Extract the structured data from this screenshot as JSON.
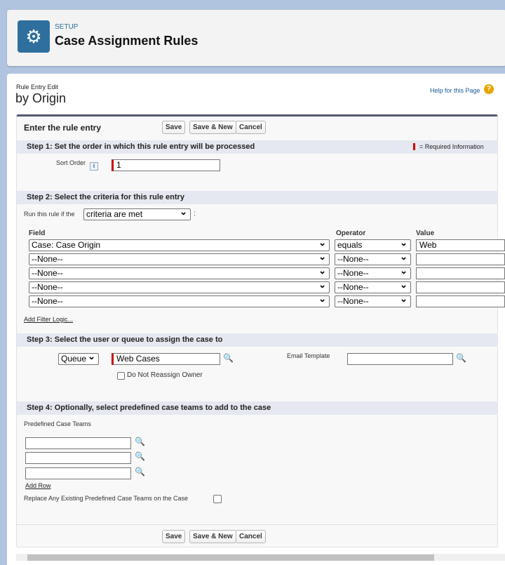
{
  "header": {
    "section": "SETUP",
    "title": "Case Assignment Rules"
  },
  "page": {
    "subtitle": "Rule Entry Edit",
    "title": "by Origin",
    "help": "Help for this Page"
  },
  "form": {
    "title": "Enter the rule entry",
    "save": "Save",
    "save_new": "Save & New",
    "cancel": "Cancel",
    "required_info": "= Required Information"
  },
  "step1": {
    "title": "Step 1: Set the order in which this rule entry will be processed",
    "sort_label": "Sort Order",
    "sort_value": "1"
  },
  "step2": {
    "title": "Step 2: Select the criteria for this rule entry",
    "run_label": "Run this rule if the",
    "run_value": "criteria are met",
    "colon": ":",
    "col_field": "Field",
    "col_operator": "Operator",
    "col_value": "Value",
    "rows": [
      {
        "field": "Case: Case Origin",
        "operator": "equals",
        "value": "Web"
      },
      {
        "field": "--None--",
        "operator": "--None--",
        "value": ""
      },
      {
        "field": "--None--",
        "operator": "--None--",
        "value": ""
      },
      {
        "field": "--None--",
        "operator": "--None--",
        "value": ""
      },
      {
        "field": "--None--",
        "operator": "--None--",
        "value": ""
      }
    ],
    "add_filter": "Add Filter Logic..."
  },
  "step3": {
    "title": "Step 3: Select the user or queue to assign the case to",
    "type": "Queue",
    "assignee": "Web Cases",
    "no_reassign": "Do Not Reassign Owner",
    "email_label": "Email Template",
    "email_value": ""
  },
  "step4": {
    "title": "Step 4: Optionally, select predefined case teams to add to the case",
    "teams_label": "Predefined Case Teams",
    "add_row": "Add Row",
    "replace_label": "Replace Any Existing Predefined Case Teams on the Case"
  },
  "colors": {
    "accent": "#2e6f9e",
    "required": "#cc0000",
    "step_bg": "#e5e8f0"
  }
}
